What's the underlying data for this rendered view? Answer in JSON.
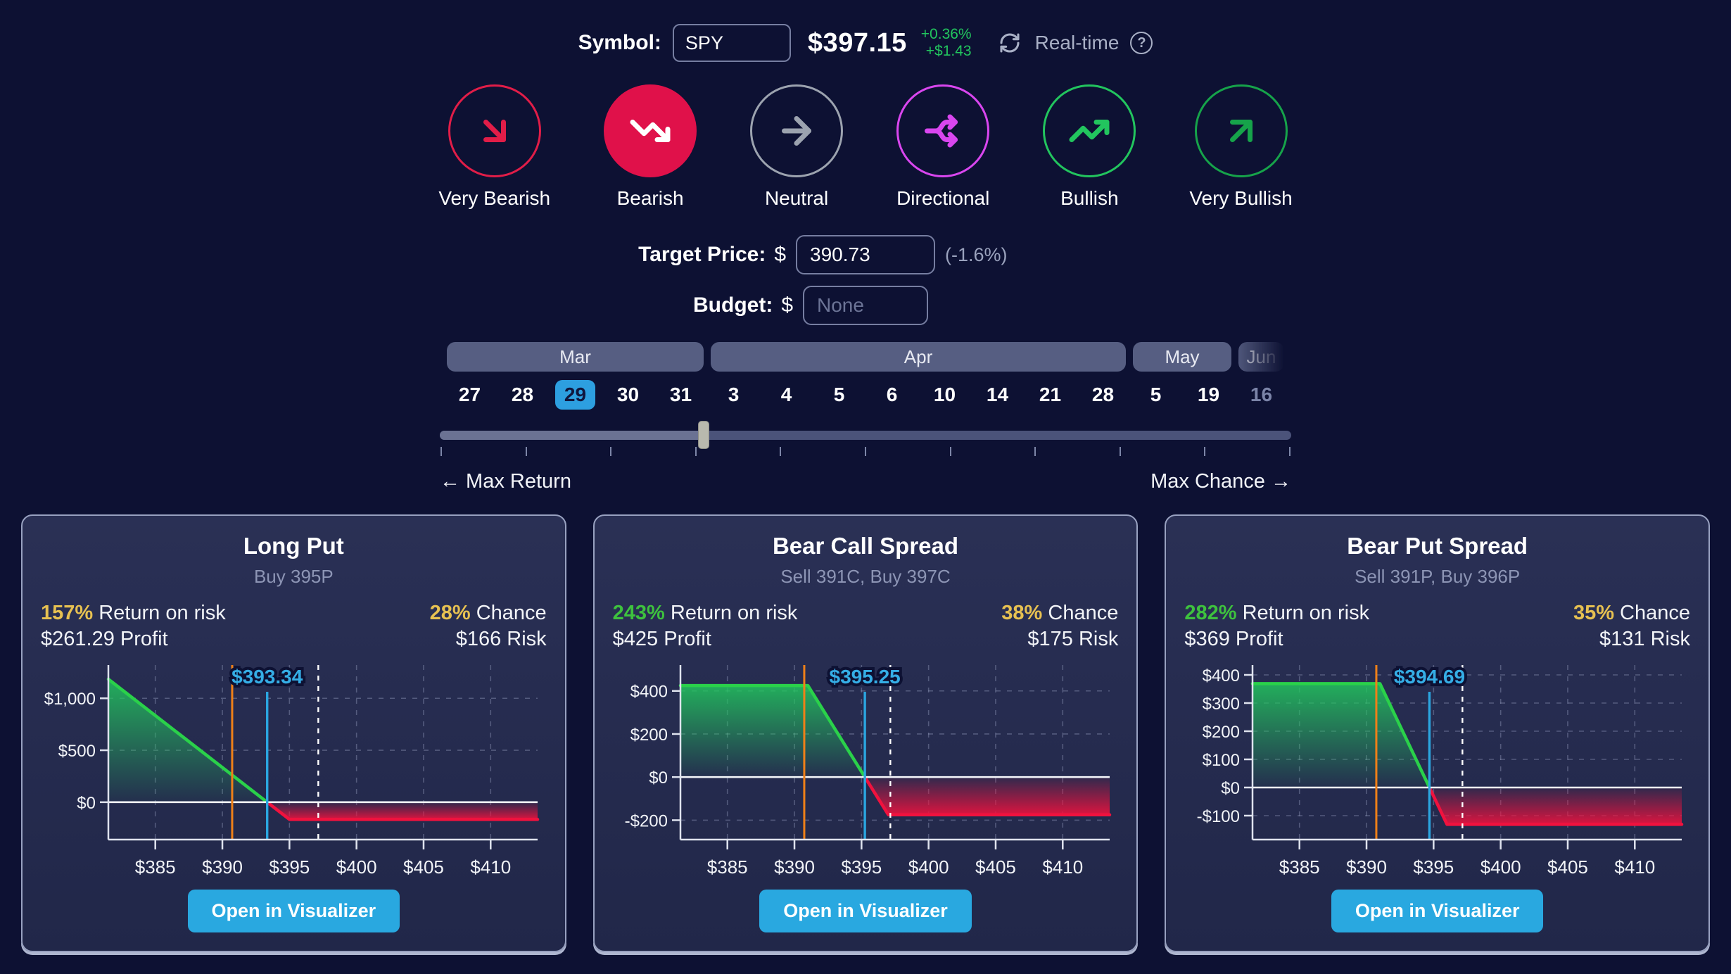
{
  "colors": {
    "background": "#0d1133",
    "card_background": "#262c50",
    "card_border": "#98a1c0",
    "accent_blue": "#29a8e0",
    "selected_day_blue": "#2d9fe0",
    "profit_green": "#22c55e",
    "loss_red": "#f0123e",
    "gold": "#e7c151",
    "target_orange": "#ef8018",
    "breakeven_blue": "#35aee6"
  },
  "header": {
    "symbol_label": "Symbol:",
    "symbol_value": "SPY",
    "price": "$397.15",
    "change_pct": "+0.36%",
    "change_abs": "+$1.43",
    "realtime_label": "Real-time",
    "help_glyph": "?"
  },
  "sentiment": {
    "options": [
      {
        "label": "Very Bearish",
        "icon": "arrow-down-right-icon",
        "color": "#e11d48",
        "selected": false
      },
      {
        "label": "Bearish",
        "icon": "trending-down-icon",
        "color": "#e0114a",
        "selected": true
      },
      {
        "label": "Neutral",
        "icon": "arrow-right-icon",
        "color": "#9ca3af",
        "selected": false
      },
      {
        "label": "Directional",
        "icon": "split-arrows-icon",
        "color": "#d946ef",
        "selected": false
      },
      {
        "label": "Bullish",
        "icon": "trending-up-icon",
        "color": "#22c55e",
        "selected": false
      },
      {
        "label": "Very Bullish",
        "icon": "arrow-up-right-icon",
        "color": "#16a34a",
        "selected": false
      }
    ]
  },
  "target_price": {
    "label": "Target Price:",
    "currency": "$",
    "value": "390.73",
    "note": "(-1.6%)"
  },
  "budget": {
    "label": "Budget:",
    "currency": "$",
    "placeholder": "None"
  },
  "expirations": {
    "months": [
      {
        "label": "Mar",
        "days": 5,
        "faded": false
      },
      {
        "label": "Apr",
        "days": 8,
        "faded": false
      },
      {
        "label": "May",
        "days": 2,
        "faded": false
      },
      {
        "label": "Jun",
        "days": 1,
        "faded": true
      }
    ],
    "days": [
      {
        "day": "27",
        "selected": false,
        "faded": false
      },
      {
        "day": "28",
        "selected": false,
        "faded": false
      },
      {
        "day": "29",
        "selected": true,
        "faded": false
      },
      {
        "day": "30",
        "selected": false,
        "faded": false
      },
      {
        "day": "31",
        "selected": false,
        "faded": false
      },
      {
        "day": "3",
        "selected": false,
        "faded": false
      },
      {
        "day": "4",
        "selected": false,
        "faded": false
      },
      {
        "day": "5",
        "selected": false,
        "faded": false
      },
      {
        "day": "6",
        "selected": false,
        "faded": false
      },
      {
        "day": "10",
        "selected": false,
        "faded": false
      },
      {
        "day": "14",
        "selected": false,
        "faded": false
      },
      {
        "day": "21",
        "selected": false,
        "faded": false
      },
      {
        "day": "28",
        "selected": false,
        "faded": false
      },
      {
        "day": "5",
        "selected": false,
        "faded": false
      },
      {
        "day": "19",
        "selected": false,
        "faded": false
      },
      {
        "day": "16",
        "selected": false,
        "faded": true
      }
    ]
  },
  "slider": {
    "left_label": "← Max Return",
    "right_label": "Max Chance →",
    "thumb_pct": 31,
    "tick_count": 11
  },
  "cards": [
    {
      "title": "Long Put",
      "subtitle": "Buy 395P",
      "return_value": "157%",
      "return_color": "#e7c151",
      "return_label": "Return on risk",
      "chance_value": "28%",
      "chance_color": "#e7c151",
      "chance_label": "Chance",
      "profit": "$261.29 Profit",
      "risk": "$166 Risk",
      "button_label": "Open in Visualizer"
    },
    {
      "title": "Bear Call Spread",
      "subtitle": "Sell 391C, Buy 397C",
      "return_value": "243%",
      "return_color": "#3ec23e",
      "return_label": "Return on risk",
      "chance_value": "38%",
      "chance_color": "#e7c151",
      "chance_label": "Chance",
      "profit": "$425 Profit",
      "risk": "$175 Risk",
      "button_label": "Open in Visualizer"
    },
    {
      "title": "Bear Put Spread",
      "subtitle": "Sell 391P, Buy 396P",
      "return_value": "282%",
      "return_color": "#3ec23e",
      "return_label": "Return on risk",
      "chance_value": "35%",
      "chance_color": "#e7c151",
      "chance_label": "Chance",
      "profit": "$369 Profit",
      "risk": "$131 Risk",
      "button_label": "Open in Visualizer"
    }
  ],
  "chart_data": [
    {
      "type": "area",
      "title": "Long Put payoff",
      "xlim": [
        381.5,
        413.5
      ],
      "ylim": [
        -360,
        1320
      ],
      "x_ticks": [
        {
          "v": 385,
          "label": "$385"
        },
        {
          "v": 390,
          "label": "$390"
        },
        {
          "v": 395,
          "label": "$395"
        },
        {
          "v": 400,
          "label": "$400"
        },
        {
          "v": 405,
          "label": "$405"
        },
        {
          "v": 410,
          "label": "$410"
        }
      ],
      "y_ticks": [
        {
          "v": 1000,
          "label": "$1,000"
        },
        {
          "v": 500,
          "label": "$500"
        },
        {
          "v": 0,
          "label": "$0"
        }
      ],
      "payoff": [
        [
          381.5,
          1184
        ],
        [
          395,
          -166
        ],
        [
          413.5,
          -166
        ]
      ],
      "breakeven": 393.34,
      "breakeven_label": "$393.34",
      "target_line": 390.73,
      "current_line": 397.15
    },
    {
      "type": "area",
      "title": "Bear Call Spread payoff",
      "xlim": [
        381.5,
        413.5
      ],
      "ylim": [
        -290,
        520
      ],
      "x_ticks": [
        {
          "v": 385,
          "label": "$385"
        },
        {
          "v": 390,
          "label": "$390"
        },
        {
          "v": 395,
          "label": "$395"
        },
        {
          "v": 400,
          "label": "$400"
        },
        {
          "v": 405,
          "label": "$405"
        },
        {
          "v": 410,
          "label": "$410"
        }
      ],
      "y_ticks": [
        {
          "v": 400,
          "label": "$400"
        },
        {
          "v": 200,
          "label": "$200"
        },
        {
          "v": 0,
          "label": "$0"
        },
        {
          "v": -200,
          "label": "-$200"
        }
      ],
      "payoff": [
        [
          381.5,
          425
        ],
        [
          391,
          425
        ],
        [
          397,
          -175
        ],
        [
          413.5,
          -175
        ]
      ],
      "breakeven": 395.25,
      "breakeven_label": "$395.25",
      "target_line": 390.73,
      "current_line": 397.15
    },
    {
      "type": "area",
      "title": "Bear Put Spread payoff",
      "xlim": [
        381.5,
        413.5
      ],
      "ylim": [
        -185,
        435
      ],
      "x_ticks": [
        {
          "v": 385,
          "label": "$385"
        },
        {
          "v": 390,
          "label": "$390"
        },
        {
          "v": 395,
          "label": "$395"
        },
        {
          "v": 400,
          "label": "$400"
        },
        {
          "v": 405,
          "label": "$405"
        },
        {
          "v": 410,
          "label": "$410"
        }
      ],
      "y_ticks": [
        {
          "v": 400,
          "label": "$400"
        },
        {
          "v": 300,
          "label": "$300"
        },
        {
          "v": 200,
          "label": "$200"
        },
        {
          "v": 100,
          "label": "$100"
        },
        {
          "v": 0,
          "label": "$0"
        },
        {
          "v": -100,
          "label": "-$100"
        }
      ],
      "payoff": [
        [
          381.5,
          369
        ],
        [
          391,
          369
        ],
        [
          396,
          -131
        ],
        [
          413.5,
          -131
        ]
      ],
      "breakeven": 394.69,
      "breakeven_label": "$394.69",
      "target_line": 390.73,
      "current_line": 397.15
    }
  ]
}
